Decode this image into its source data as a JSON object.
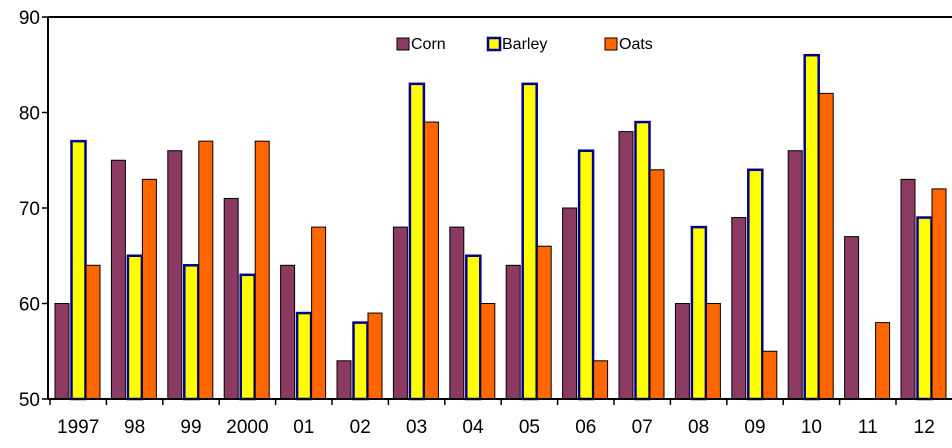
{
  "chart_data": {
    "type": "bar",
    "title": "",
    "xlabel": "",
    "ylabel": "",
    "categories": [
      "1997",
      "98",
      "99",
      "2000",
      "01",
      "02",
      "03",
      "04",
      "05",
      "06",
      "07",
      "08",
      "09",
      "10",
      "11",
      "12"
    ],
    "ylim": [
      50,
      90
    ],
    "yticks": [
      50,
      60,
      70,
      80,
      90
    ],
    "grid": false,
    "legend_position": "top-center",
    "series": [
      {
        "name": "Corn",
        "color": "#8b3a62",
        "values": [
          60,
          75,
          76,
          71,
          64,
          54,
          68,
          68,
          64,
          70,
          78,
          60,
          69,
          76,
          67,
          73
        ]
      },
      {
        "name": "Barley",
        "color": "#ffff00",
        "values": [
          77,
          65,
          64,
          63,
          59,
          58,
          83,
          65,
          83,
          76,
          79,
          68,
          74,
          86,
          null,
          69
        ]
      },
      {
        "name": "Oats",
        "color": "#ff6600",
        "values": [
          64,
          73,
          77,
          77,
          68,
          59,
          79,
          60,
          66,
          54,
          74,
          60,
          55,
          82,
          58,
          72
        ]
      }
    ],
    "series_outline": {
      "Corn": "#000000",
      "Barley": "#00008b",
      "Oats": "#000000"
    }
  }
}
